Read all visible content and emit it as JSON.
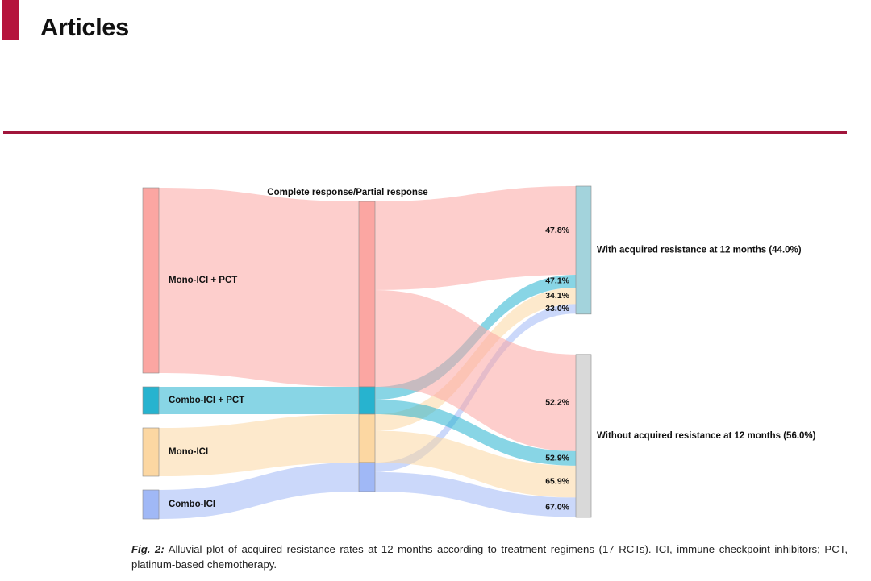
{
  "header": {
    "section_title": "Articles"
  },
  "colors": {
    "accent": "#b5143c",
    "mono_pct": "#fba6a2",
    "combo_pct": "#27b3cf",
    "mono_ici": "#fcd7a2",
    "combo_ici": "#a0b8f6",
    "with_node": "#a3d3dc",
    "without_node": "#d9d9d9"
  },
  "chart_data": {
    "type": "sankey",
    "stages": [
      {
        "label": ""
      },
      {
        "label": "Complete response/Partial response"
      },
      {
        "label": ""
      }
    ],
    "sources": [
      {
        "id": "mono_pct",
        "label": "Mono-ICI + PCT",
        "value": 1150
      },
      {
        "id": "combo_pct",
        "label": "Combo-ICI + PCT",
        "value": 170
      },
      {
        "id": "mono_ici",
        "label": "Mono-ICI",
        "value": 300
      },
      {
        "id": "combo_ici",
        "label": "Combo-ICI",
        "value": 180
      }
    ],
    "outcomes": [
      {
        "id": "with",
        "label": "With acquired resistance  at 12 months (44.0%)",
        "value": 44.0
      },
      {
        "id": "without",
        "label": "Without acquired resistance at 12 months (56.0%)",
        "value": 56.0
      }
    ],
    "flows": [
      {
        "source": "mono_pct",
        "target": "with",
        "percent": 47.8,
        "label": "47.8%"
      },
      {
        "source": "combo_pct",
        "target": "with",
        "percent": 47.1,
        "label": "47.1%"
      },
      {
        "source": "mono_ici",
        "target": "with",
        "percent": 34.1,
        "label": "34.1%"
      },
      {
        "source": "combo_ici",
        "target": "with",
        "percent": 33.0,
        "label": "33.0%"
      },
      {
        "source": "mono_pct",
        "target": "without",
        "percent": 52.2,
        "label": "52.2%"
      },
      {
        "source": "combo_pct",
        "target": "without",
        "percent": 52.9,
        "label": "52.9%"
      },
      {
        "source": "mono_ici",
        "target": "without",
        "percent": 65.9,
        "label": "65.9%"
      },
      {
        "source": "combo_ici",
        "target": "without",
        "percent": 67.0,
        "label": "67.0%"
      }
    ]
  },
  "caption": {
    "label": "Fig. 2:",
    "text": "Alluvial plot of acquired resistance rates at 12 months according to treatment regimens (17 RCTs). ICI, immune checkpoint inhibitors; PCT, platinum-based chemotherapy."
  }
}
